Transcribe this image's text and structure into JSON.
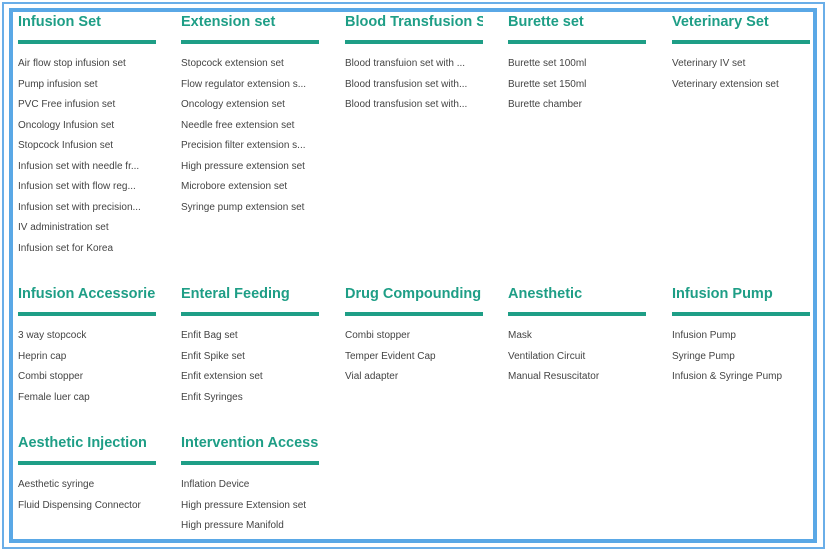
{
  "categories": [
    {
      "title": "Infusion Set",
      "items": [
        "Air flow stop infusion set",
        "Pump infusion set",
        "PVC Free infusion set",
        "Oncology Infusion set",
        "Stopcock Infusion set",
        "Infusion set with needle fr...",
        "Infusion set with flow reg...",
        "Infusion set with precision...",
        "IV administration set",
        "Infusion set for Korea"
      ]
    },
    {
      "title": "Extension set",
      "items": [
        "Stopcock extension set",
        "Flow regulator extension s...",
        "Oncology extension set",
        "Needle free extension set",
        "Precision filter extension s...",
        "High pressure extension set",
        "Microbore extension set",
        "Syringe pump extension set"
      ]
    },
    {
      "title": "Blood Transfusion Set",
      "items": [
        "Blood transfuion set with ...",
        "Blood transfusion set with...",
        "Blood transfusion set with..."
      ]
    },
    {
      "title": "Burette set",
      "items": [
        "Burette set 100ml",
        "Burette set 150ml",
        "Burette chamber"
      ]
    },
    {
      "title": "Veterinary Set",
      "items": [
        "Veterinary IV set",
        "Veterinary extension set"
      ]
    },
    {
      "title": "Infusion Accessories",
      "items": [
        "3 way stopcock",
        "Heprin cap",
        "Combi stopper",
        "Female luer cap"
      ]
    },
    {
      "title": "Enteral Feeding",
      "items": [
        "Enfit Bag set",
        "Enfit Spike set",
        "Enfit extension set",
        "Enfit Syringes"
      ]
    },
    {
      "title": "Drug Compounding",
      "items": [
        "Combi stopper",
        "Temper Evident Cap",
        "Vial  adapter"
      ]
    },
    {
      "title": "Anesthetic",
      "items": [
        "Mask",
        "Ventilation Circuit",
        "Manual Resuscitator"
      ]
    },
    {
      "title": "Infusion Pump",
      "items": [
        "Infusion Pump",
        "Syringe Pump",
        "Infusion & Syringe Pump"
      ]
    },
    {
      "title": "Aesthetic Injection",
      "items": [
        "Aesthetic syringe",
        "Fluid Dispensing Connector"
      ]
    },
    {
      "title": "Intervention Access...",
      "items": [
        "Inflation Device",
        "High pressure Extension set",
        "High pressure Manifold"
      ]
    }
  ],
  "colors": {
    "accent": "#1e9e86",
    "frame": "#5aa8e6"
  }
}
